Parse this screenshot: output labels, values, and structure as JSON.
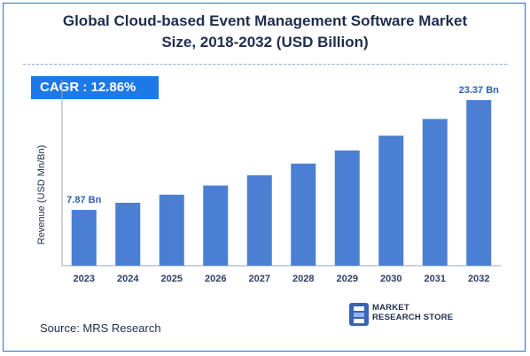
{
  "title_line1": "Global Cloud-based Event Management Software Market",
  "title_line2": "Size, 2018-2032 (USD Billion)",
  "cagr_label": "CAGR :  12.86%",
  "source": "Source: MRS Research",
  "logo": {
    "line1": "MARKET",
    "line2": "RESEARCH STORE"
  },
  "colors": {
    "bar": "#4a7fd4",
    "label": "#2f5fae",
    "axis": "#9aa7bc",
    "cagr_bg": "#1e79e8"
  },
  "chart_data": {
    "type": "bar",
    "categories": [
      "2023",
      "2024",
      "2025",
      "2026",
      "2027",
      "2028",
      "2029",
      "2030",
      "2031",
      "2032"
    ],
    "values": [
      7.87,
      8.88,
      10.02,
      11.31,
      12.77,
      14.41,
      16.26,
      18.35,
      20.71,
      23.37
    ],
    "data_labels": {
      "0": "7.87 Bn",
      "9": "23.37 Bn"
    },
    "ylabel": "Revenue (USD Mn/Bn)",
    "xlabel": "",
    "ylim": [
      0,
      25
    ],
    "grid": false
  }
}
